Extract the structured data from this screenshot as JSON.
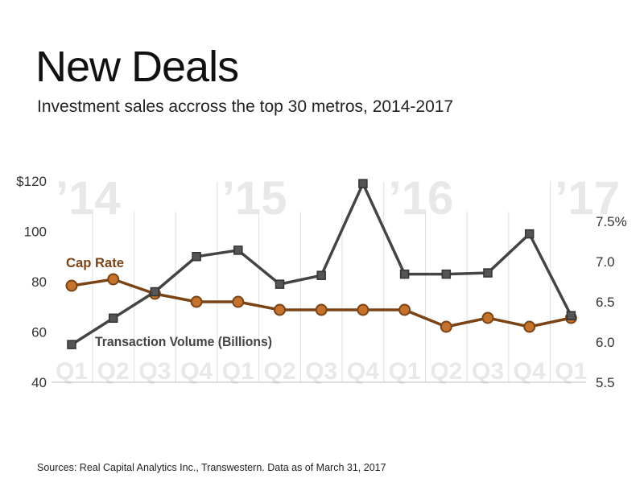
{
  "title": "New Deals",
  "subtitle": "Investment sales accross the top 30 metros, 2014-2017",
  "source": "Sources: Real Capital Analytics Inc., Transwestern. Data as of March 31, 2017",
  "colors": {
    "volume": "#444444",
    "cap_rate": "#7a4416",
    "watermark": "#e8e8e8",
    "grid": "#dedede"
  },
  "chart_data": {
    "type": "line",
    "categories": [
      "Q1",
      "Q2",
      "Q3",
      "Q4",
      "Q1",
      "Q2",
      "Q3",
      "Q4",
      "Q1",
      "Q2",
      "Q3",
      "Q4",
      "Q1"
    ],
    "year_labels": [
      {
        "label": "’14",
        "start_index": 0
      },
      {
        "label": "’15",
        "start_index": 4
      },
      {
        "label": "’16",
        "start_index": 8
      },
      {
        "label": "’17",
        "start_index": 12
      }
    ],
    "series": [
      {
        "name": "Transaction Volume (Billions)",
        "axis": "left",
        "values": [
          55,
          65.5,
          76,
          90,
          92.5,
          79,
          82.5,
          119,
          83,
          83,
          83.5,
          99,
          66.5
        ]
      },
      {
        "name": "Cap Rate",
        "axis": "right",
        "values": [
          6.7,
          6.78,
          6.6,
          6.5,
          6.5,
          6.4,
          6.4,
          6.4,
          6.4,
          6.19,
          6.3,
          6.19,
          6.3
        ]
      }
    ],
    "left_axis": {
      "ticks": [
        "$120",
        "100",
        "80",
        "60",
        "40"
      ],
      "tick_values": [
        120,
        100,
        80,
        60,
        40
      ],
      "range": [
        40,
        120
      ]
    },
    "right_axis": {
      "ticks": [
        "7.5%",
        "7.0",
        "6.5",
        "6.0",
        "5.5"
      ],
      "tick_values": [
        7.5,
        7.0,
        6.5,
        6.0,
        5.5
      ],
      "range": [
        5.5,
        7.5
      ]
    },
    "grid": "vertical"
  }
}
